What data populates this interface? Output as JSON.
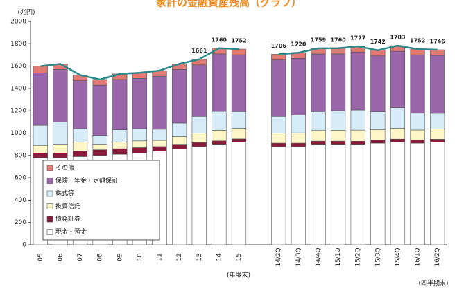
{
  "chart_data": {
    "type": "stacked-bar",
    "title": "家計の金融資産残高（グラフ）",
    "y_label": "(兆円)",
    "x_label": "(年度末)",
    "x_label_2": "(四半期末)",
    "categories": [
      "05",
      "06",
      "07",
      "08",
      "09",
      "10",
      "11",
      "12",
      "13",
      "14",
      "15",
      null,
      "14/2Q",
      "14/3Q",
      "14/4Q",
      "15/1Q",
      "15/2Q",
      "15/3Q",
      "15/4Q",
      "16/1Q",
      "16/2Q"
    ],
    "series": [
      {
        "name": "現金・預金",
        "color": "#ffffff",
        "values": [
          780,
          780,
          790,
          800,
          810,
          820,
          840,
          860,
          880,
          900,
          920,
          null,
          880,
          880,
          900,
          900,
          900,
          910,
          920,
          910,
          920
        ]
      },
      {
        "name": "債務証券",
        "color": "#8b1a3a",
        "values": [
          40,
          40,
          50,
          50,
          50,
          50,
          40,
          40,
          35,
          30,
          28,
          null,
          30,
          30,
          28,
          28,
          27,
          27,
          26,
          26,
          25
        ]
      },
      {
        "name": "投資信託",
        "color": "#fff6c8",
        "values": [
          70,
          80,
          80,
          50,
          60,
          60,
          55,
          70,
          85,
          95,
          95,
          null,
          90,
          92,
          95,
          98,
          100,
          95,
          97,
          92,
          92
        ]
      },
      {
        "name": "株式等",
        "color": "#d6ecf8",
        "values": [
          180,
          200,
          120,
          80,
          110,
          110,
          100,
          120,
          150,
          170,
          150,
          null,
          150,
          160,
          170,
          175,
          180,
          160,
          185,
          150,
          140
        ]
      },
      {
        "name": "保険・年金・定額保証",
        "color": "#9966aa",
        "values": [
          470,
          470,
          430,
          450,
          450,
          450,
          475,
          480,
          461,
          515,
          509,
          null,
          506,
          508,
          516,
          509,
          520,
          500,
          505,
          524,
          519
        ]
      },
      {
        "name": "その他",
        "color": "#e07a72",
        "values": [
          60,
          50,
          50,
          50,
          50,
          50,
          50,
          50,
          50,
          50,
          50,
          null,
          50,
          50,
          50,
          50,
          50,
          50,
          50,
          50,
          50
        ]
      }
    ],
    "total": {
      "color": "#2a8a8a",
      "values": [
        1600,
        1620,
        1520,
        1480,
        1530,
        1540,
        1560,
        1620,
        1661,
        1760,
        1752,
        null,
        1706,
        1720,
        1759,
        1760,
        1777,
        1742,
        1783,
        1752,
        1746
      ],
      "value_labels": [
        null,
        null,
        null,
        null,
        null,
        null,
        null,
        null,
        "1661",
        "1760",
        "1752",
        null,
        "1706",
        "1720",
        "1759",
        "1760",
        "1777",
        "1742",
        "1783",
        "1752",
        "1746"
      ]
    },
    "ylim": [
      0,
      2000
    ],
    "yticks": [
      0,
      200,
      400,
      600,
      800,
      1000,
      1200,
      1400,
      1600,
      1800,
      2000
    ],
    "grid": false,
    "legend": "lower left"
  }
}
